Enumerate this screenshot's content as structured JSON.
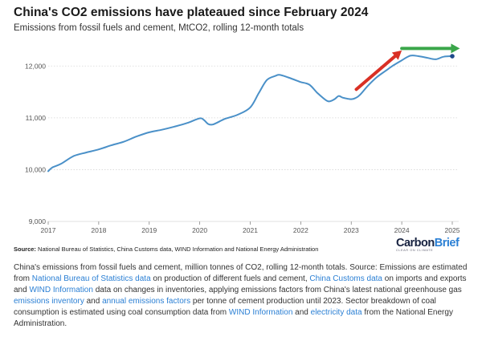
{
  "title": "China's CO2 emissions have plateaued since February 2024",
  "subtitle": "Emissions from fossil fuels and cement, MtCO2, rolling 12-month totals",
  "source": {
    "label": "Source:",
    "text": "National Bureau of Statistics, China Customs data, WIND Information and National Energy Administration"
  },
  "logo": {
    "part1": "Carbon",
    "part2": "Brief",
    "tagline": "CLEAR ON CLIMATE"
  },
  "caption": {
    "t1": "China's emissions from fossil fuels and cement, million tonnes of CO2, rolling 12-month totals. Source: Emissions are estimated from ",
    "l1": "National Bureau of Statistics data",
    "t2": " on production of different fuels and cement, ",
    "l2": "China Customs data",
    "t3": " on imports and exports and ",
    "l3": "WIND Information",
    "t4": " data on changes in inventories, applying emissions factors from China's latest national greenhouse gas ",
    "l4": "emissions inventory",
    "t5": " and ",
    "l5": "annual emissions factors",
    "t6": " per tonne of cement production until 2023. Sector breakdown of coal consumption is estimated using coal consumption data from ",
    "l6": "WIND Information",
    "t7": " and ",
    "l7": "electricity data",
    "t8": " from the National Energy Administration."
  },
  "colors": {
    "line": "#4a90c8",
    "endpoint": "#1f4a8a",
    "up_arrow": "#d93025",
    "flat_arrow": "#3aa64a",
    "grid": "#d6d6d6",
    "link": "#2a7fd4"
  },
  "chart_data": {
    "type": "line",
    "title": "China's CO2 emissions have plateaued since February 2024",
    "subtitle": "Emissions from fossil fuels and cement, MtCO2, rolling 12-month totals",
    "xlabel": "",
    "ylabel": "",
    "xlim": [
      2017,
      2025
    ],
    "ylim": [
      9000,
      12500
    ],
    "x_ticks": [
      2017,
      2018,
      2019,
      2020,
      2021,
      2022,
      2023,
      2024,
      2025
    ],
    "y_ticks": [
      9000,
      10000,
      11000,
      12000
    ],
    "y_tick_labels": [
      "9,000",
      "10,000",
      "11,000",
      "12,000"
    ],
    "grid": "horizontal",
    "legend": "none",
    "series": [
      {
        "x": [
          2017.0,
          2017.08,
          2017.25,
          2017.5,
          2017.75,
          2018.0,
          2018.25,
          2018.5,
          2018.75,
          2019.0,
          2019.25,
          2019.5,
          2019.75,
          2020.0,
          2020.08,
          2020.17,
          2020.25,
          2020.33,
          2020.5,
          2020.75,
          2021.0,
          2021.17,
          2021.33,
          2021.5,
          2021.58,
          2021.75,
          2021.92,
          2022.0,
          2022.17,
          2022.33,
          2022.5,
          2022.58,
          2022.67,
          2022.75,
          2022.83,
          2022.92,
          2023.0,
          2023.08,
          2023.17,
          2023.33,
          2023.5,
          2023.67,
          2023.83,
          2024.0,
          2024.17,
          2024.33,
          2024.5,
          2024.67,
          2024.83,
          2025.0
        ],
        "y": [
          9970,
          10040,
          10110,
          10260,
          10330,
          10390,
          10470,
          10540,
          10640,
          10720,
          10770,
          10830,
          10900,
          10990,
          10960,
          10880,
          10870,
          10900,
          10980,
          11060,
          11200,
          11480,
          11730,
          11810,
          11830,
          11780,
          11720,
          11690,
          11640,
          11480,
          11340,
          11320,
          11360,
          11420,
          11390,
          11370,
          11360,
          11380,
          11440,
          11620,
          11780,
          11900,
          12010,
          12110,
          12200,
          12190,
          12160,
          12130,
          12180,
          12190
        ]
      }
    ],
    "annotations": [
      {
        "type": "arrow",
        "color": "red",
        "from": [
          2023.1,
          11550
        ],
        "to": [
          2024.0,
          12300
        ]
      },
      {
        "type": "arrow",
        "color": "green",
        "from": [
          2024.0,
          12340
        ],
        "to": [
          2025.15,
          12340
        ]
      }
    ]
  }
}
